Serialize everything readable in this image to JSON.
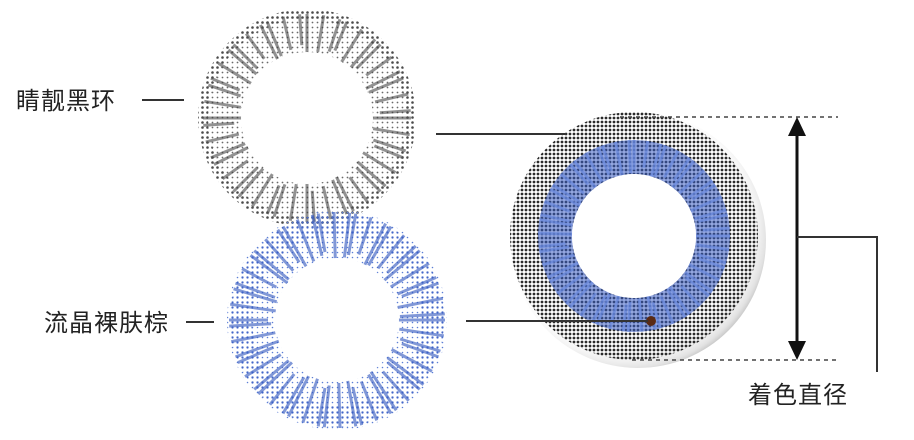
{
  "labels": {
    "black_ring": "睛靓黑环",
    "brown_ring": "流晶裸肤棕",
    "diameter": "着色直径"
  },
  "colors": {
    "black_ring": "#3a3a3a",
    "blue_ring": "#3a5fc4",
    "combined_outer": "#2b2b2b",
    "leader_line": "#333333",
    "arrow": "#111111",
    "pupil_dot": "#5a2a14"
  }
}
